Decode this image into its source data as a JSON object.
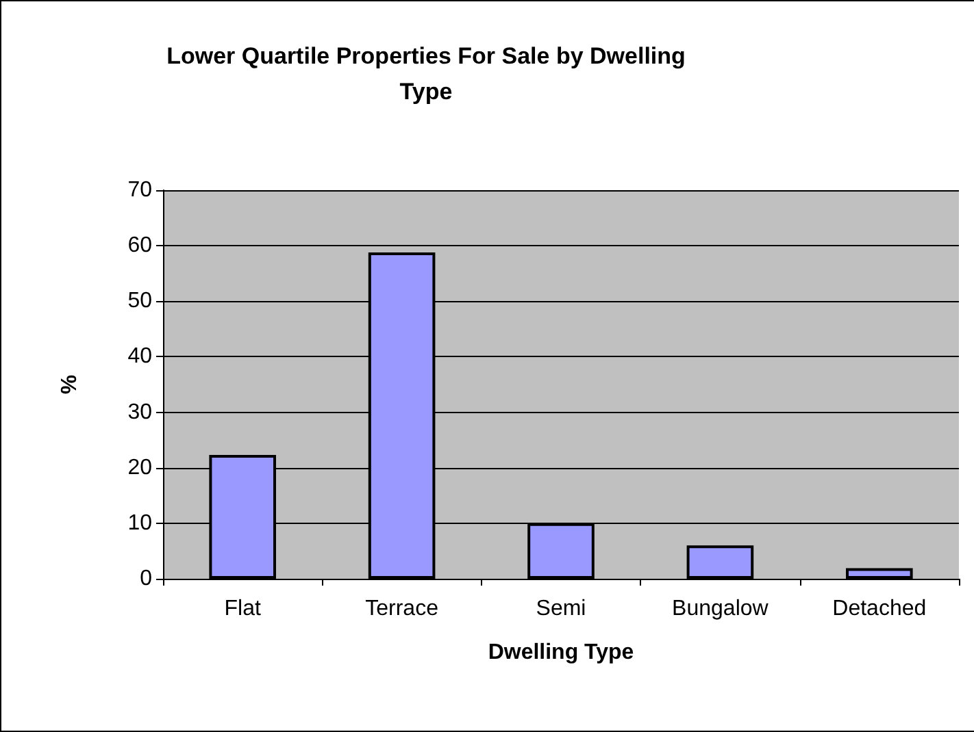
{
  "chart_data": {
    "type": "bar",
    "title": "Lower Quartile Properties For Sale by Dwelling\nType",
    "xlabel": "Dwelling Type",
    "ylabel": "%",
    "categories": [
      "Flat",
      "Terrace",
      "Semi",
      "Bungalow",
      "Detached"
    ],
    "values": [
      22.3,
      58.8,
      10,
      6,
      1.9
    ],
    "color": "#9999ff",
    "ylim": [
      0,
      70
    ],
    "yticks": [
      0,
      10,
      20,
      30,
      40,
      50,
      60,
      70
    ],
    "grid": "y"
  }
}
